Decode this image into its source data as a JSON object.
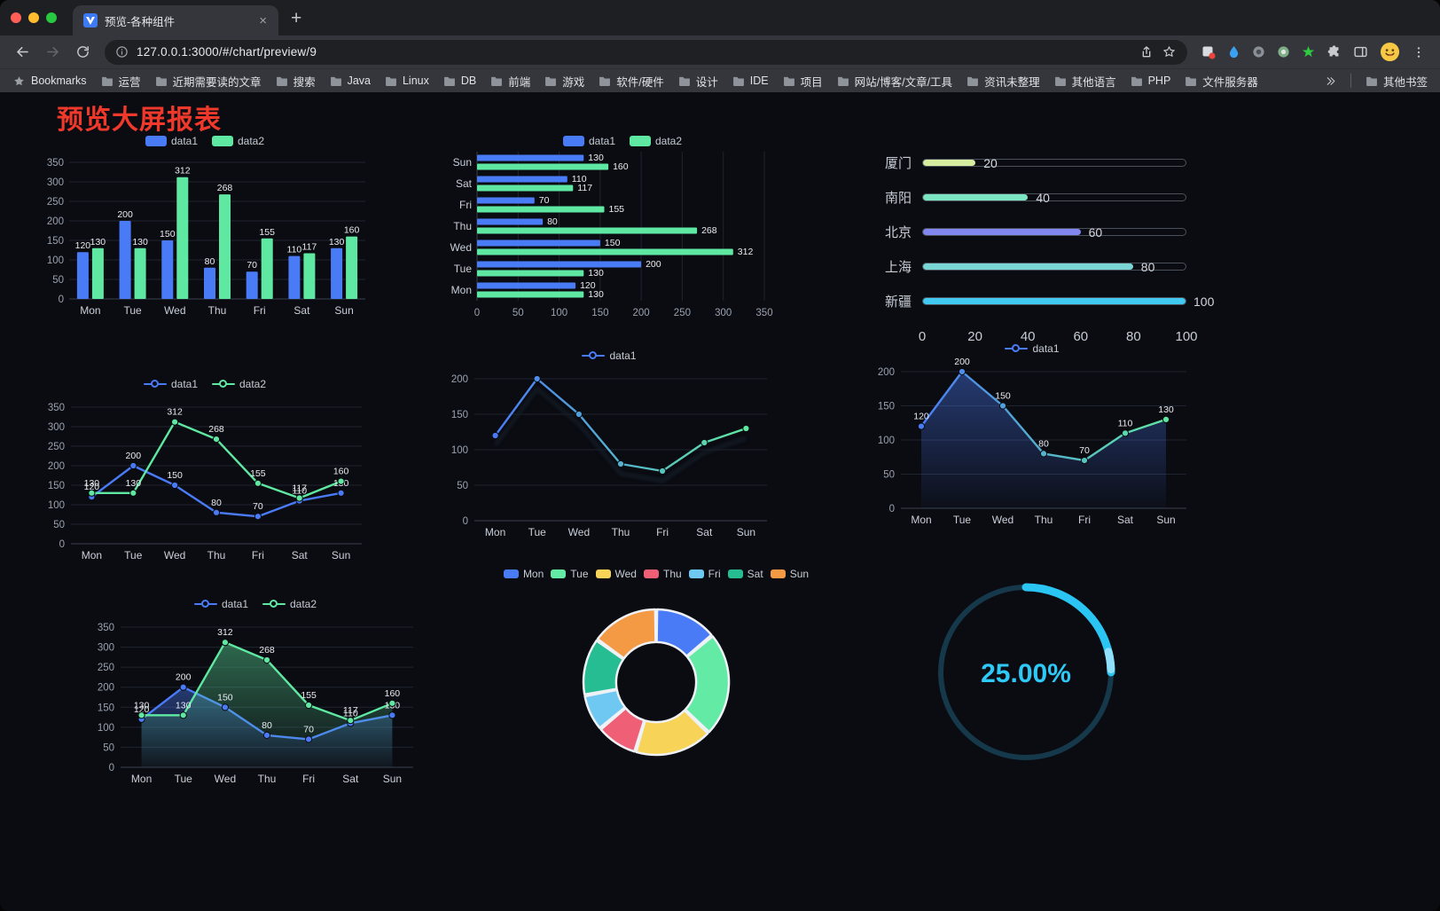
{
  "browser": {
    "window_controls": [
      "#ff5f57",
      "#febc2e",
      "#28c840"
    ],
    "tab_title": "预览-各种组件",
    "new_tab_button": "+",
    "url": "127.0.0.1:3000/#/chart/preview/9",
    "bookmarks_bar": {
      "first_item": "Bookmarks",
      "folders": [
        "运营",
        "近期需要读的文章",
        "搜索",
        "Java",
        "Linux",
        "DB",
        "前端",
        "游戏",
        "软件/硬件",
        "设计",
        "IDE",
        "项目",
        "网站/博客/文章/工具",
        "资讯未整理",
        "其他语言",
        "PHP",
        "文件服务器"
      ],
      "overflow_chevron": "»",
      "other_bookmarks": "其他书签"
    }
  },
  "page": {
    "title": "预览大屏报表",
    "title_color": "#f0392b",
    "background": "#0b0c12"
  },
  "chart_data": [
    {
      "id": "grouped-bar",
      "type": "bar",
      "orientation": "vertical",
      "categories": [
        "Mon",
        "Tue",
        "Wed",
        "Thu",
        "Fri",
        "Sat",
        "Sun"
      ],
      "max": 350,
      "ticks": [
        0,
        50,
        100,
        150,
        200,
        250,
        300,
        350
      ],
      "show_labels": true,
      "legend": true,
      "series": [
        {
          "name": "data1",
          "color": "#4a7bf7",
          "values": [
            120,
            200,
            150,
            80,
            70,
            110,
            130
          ]
        },
        {
          "name": "data2",
          "color": "#5fe8a1",
          "values": [
            130,
            130,
            312,
            268,
            155,
            117,
            160
          ]
        }
      ]
    },
    {
      "id": "grouped-bar-horizontal",
      "type": "bar",
      "orientation": "horizontal",
      "categories": [
        "Mon",
        "Tue",
        "Wed",
        "Thu",
        "Fri",
        "Sat",
        "Sun"
      ],
      "max": 350,
      "ticks": [
        0,
        50,
        100,
        150,
        200,
        250,
        300,
        350
      ],
      "show_labels": true,
      "legend": true,
      "series": [
        {
          "name": "data1",
          "color": "#4a7bf7",
          "values": [
            120,
            200,
            150,
            80,
            70,
            110,
            130
          ]
        },
        {
          "name": "data2",
          "color": "#5fe8a1",
          "values": [
            130,
            130,
            312,
            268,
            155,
            117,
            160
          ]
        }
      ]
    },
    {
      "id": "city-progress",
      "type": "progress",
      "max": 100,
      "axis_ticks": [
        0,
        20,
        40,
        60,
        80,
        100
      ],
      "items": [
        {
          "label": "厦门",
          "value": 20,
          "color": "#d6ec9f"
        },
        {
          "label": "南阳",
          "value": 40,
          "color": "#7ce5c1"
        },
        {
          "label": "北京",
          "value": 60,
          "color": "#8286ef"
        },
        {
          "label": "上海",
          "value": 80,
          "color": "#79d6d5"
        },
        {
          "label": "新疆",
          "value": 100,
          "color": "#41c9f1"
        }
      ]
    },
    {
      "id": "dual-line",
      "type": "line",
      "categories": [
        "Mon",
        "Tue",
        "Wed",
        "Thu",
        "Fri",
        "Sat",
        "Sun"
      ],
      "max": 350,
      "ticks": [
        0,
        50,
        100,
        150,
        200,
        250,
        300,
        350
      ],
      "show_labels": true,
      "legend": true,
      "series": [
        {
          "name": "data1",
          "color": "#4a7bf7",
          "values": [
            120,
            200,
            150,
            80,
            70,
            110,
            130
          ]
        },
        {
          "name": "data2",
          "color": "#5fe8a1",
          "values": [
            130,
            130,
            312,
            268,
            155,
            117,
            160
          ]
        }
      ]
    },
    {
      "id": "gradient-line",
      "type": "line",
      "categories": [
        "Mon",
        "Tue",
        "Wed",
        "Thu",
        "Fri",
        "Sat",
        "Sun"
      ],
      "max": 200,
      "ticks": [
        0,
        50,
        100,
        150,
        200
      ],
      "show_labels": false,
      "legend": true,
      "shadow": true,
      "series": [
        {
          "name": "data1",
          "gradient": [
            "#4a7bf7",
            "#5fe8a1"
          ],
          "values": [
            120,
            200,
            150,
            80,
            70,
            110,
            130
          ]
        }
      ]
    },
    {
      "id": "area-line",
      "type": "line",
      "categories": [
        "Mon",
        "Tue",
        "Wed",
        "Thu",
        "Fri",
        "Sat",
        "Sun"
      ],
      "max": 200,
      "ticks": [
        0,
        50,
        100,
        150,
        200
      ],
      "show_labels": true,
      "legend": true,
      "series": [
        {
          "name": "data1",
          "gradient": [
            "#4a7bf7",
            "#5fe8a1"
          ],
          "area": true,
          "values": [
            120,
            200,
            150,
            80,
            70,
            110,
            130
          ]
        }
      ]
    },
    {
      "id": "dual-area-line",
      "type": "line",
      "categories": [
        "Mon",
        "Tue",
        "Wed",
        "Thu",
        "Fri",
        "Sat",
        "Sun"
      ],
      "max": 350,
      "ticks": [
        0,
        50,
        100,
        150,
        200,
        250,
        300,
        350
      ],
      "show_labels": true,
      "legend": true,
      "series": [
        {
          "name": "data1",
          "color": "#4a7bf7",
          "area": true,
          "values": [
            120,
            200,
            150,
            80,
            70,
            110,
            130
          ]
        },
        {
          "name": "data2",
          "color": "#5fe8a1",
          "area": true,
          "values": [
            130,
            130,
            312,
            268,
            155,
            117,
            160
          ]
        }
      ]
    },
    {
      "id": "weekday-donut",
      "type": "pie",
      "legend": true,
      "inner_radius_ratio": 0.55,
      "slices": [
        {
          "label": "Mon",
          "value": 120,
          "color": "#4a7bf7"
        },
        {
          "label": "Tue",
          "value": 200,
          "color": "#63eba6"
        },
        {
          "label": "Wed",
          "value": 150,
          "color": "#f7d458"
        },
        {
          "label": "Thu",
          "value": 80,
          "color": "#ef5f76"
        },
        {
          "label": "Fri",
          "value": 70,
          "color": "#6fc8f2"
        },
        {
          "label": "Sat",
          "value": 110,
          "color": "#27bd93"
        },
        {
          "label": "Sun",
          "value": 130,
          "color": "#f59a44"
        }
      ]
    },
    {
      "id": "percent-gauge",
      "type": "gauge",
      "value": 25,
      "label": "25.00%",
      "color": "#2bc5f4",
      "tip_color": "#8fe0fb",
      "track_color": "#15394a"
    }
  ]
}
